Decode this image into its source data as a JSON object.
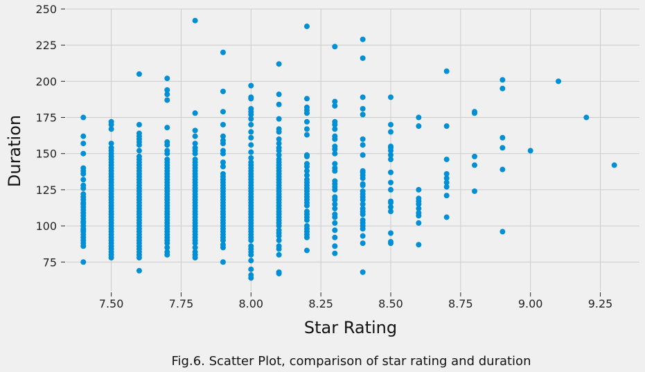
{
  "chart_data": {
    "type": "scatter",
    "xlabel": "Star Rating",
    "ylabel": "Duration",
    "caption": "Fig.6. Scatter Plot, comparison of star rating and duration",
    "xlim": [
      7.32,
      9.39
    ],
    "ylim": [
      55,
      250
    ],
    "xticks": [
      7.5,
      7.75,
      8.0,
      8.25,
      8.5,
      8.75,
      9.0,
      9.25
    ],
    "xtick_labels": [
      "7.50",
      "7.75",
      "8.00",
      "8.25",
      "8.50",
      "8.75",
      "9.00",
      "9.25"
    ],
    "yticks": [
      75,
      100,
      125,
      150,
      175,
      200,
      225,
      250
    ],
    "ytick_labels": [
      "75",
      "100",
      "125",
      "150",
      "175",
      "200",
      "225",
      "250"
    ],
    "grid": true,
    "marker_color": "#008fd5",
    "background_color": "#f0f0f0",
    "grid_color": "#cbcbcb",
    "groups": [
      {
        "x": 7.4,
        "y": [
          75,
          86,
          88,
          90,
          92,
          94,
          96,
          97,
          98,
          100,
          102,
          103,
          105,
          107,
          109,
          111,
          113,
          115,
          116,
          118,
          120,
          122,
          126,
          128,
          132,
          136,
          138,
          140,
          150,
          157,
          162,
          175
        ]
      },
      {
        "x": 7.5,
        "y": [
          78,
          80,
          82,
          84,
          86,
          88,
          90,
          92,
          94,
          96,
          98,
          100,
          102,
          104,
          106,
          108,
          110,
          112,
          114,
          116,
          118,
          120,
          122,
          124,
          126,
          128,
          130,
          132,
          134,
          136,
          138,
          140,
          142,
          144,
          146,
          148,
          150,
          152,
          154,
          157,
          167,
          170,
          172
        ]
      },
      {
        "x": 7.6,
        "y": [
          69,
          78,
          80,
          82,
          84,
          86,
          88,
          90,
          92,
          94,
          96,
          98,
          100,
          102,
          104,
          106,
          108,
          110,
          112,
          114,
          116,
          118,
          120,
          122,
          124,
          126,
          128,
          130,
          132,
          134,
          136,
          138,
          140,
          142,
          144,
          146,
          148,
          152,
          156,
          158,
          160,
          162,
          164,
          170,
          205
        ]
      },
      {
        "x": 7.7,
        "y": [
          80,
          82,
          85,
          88,
          90,
          92,
          94,
          96,
          98,
          100,
          102,
          104,
          106,
          108,
          110,
          112,
          114,
          116,
          118,
          120,
          122,
          124,
          126,
          128,
          130,
          132,
          134,
          136,
          138,
          140,
          142,
          144,
          146,
          150,
          152,
          156,
          158,
          168,
          187,
          191,
          194,
          202
        ]
      },
      {
        "x": 7.8,
        "y": [
          78,
          80,
          82,
          85,
          88,
          90,
          92,
          94,
          96,
          98,
          100,
          102,
          104,
          106,
          108,
          110,
          112,
          114,
          116,
          118,
          120,
          122,
          124,
          126,
          128,
          130,
          132,
          134,
          136,
          138,
          140,
          142,
          144,
          146,
          150,
          152,
          154,
          157,
          162,
          166,
          178,
          242
        ]
      },
      {
        "x": 7.9,
        "y": [
          75,
          85,
          87,
          90,
          92,
          94,
          96,
          98,
          100,
          102,
          104,
          106,
          108,
          110,
          112,
          114,
          116,
          118,
          120,
          122,
          124,
          126,
          128,
          130,
          132,
          134,
          136,
          141,
          144,
          150,
          152,
          157,
          159,
          162,
          170,
          179,
          193,
          220
        ]
      },
      {
        "x": 8.0,
        "y": [
          64,
          66,
          70,
          76,
          80,
          82,
          84,
          86,
          90,
          92,
          94,
          96,
          98,
          100,
          102,
          104,
          106,
          108,
          110,
          112,
          114,
          116,
          118,
          120,
          122,
          124,
          126,
          128,
          130,
          132,
          134,
          136,
          138,
          140,
          142,
          144,
          147,
          151,
          156,
          161,
          165,
          170,
          174,
          177,
          179,
          181,
          188,
          189,
          197
        ]
      },
      {
        "x": 8.1,
        "y": [
          67,
          68,
          80,
          84,
          86,
          90,
          93,
          95,
          97,
          100,
          102,
          104,
          106,
          108,
          110,
          112,
          114,
          116,
          118,
          120,
          122,
          124,
          126,
          128,
          130,
          132,
          134,
          136,
          138,
          140,
          142,
          144,
          146,
          149,
          152,
          154,
          157,
          160,
          165,
          167,
          174,
          184,
          191,
          212
        ]
      },
      {
        "x": 8.2,
        "y": [
          83,
          92,
          94,
          96,
          98,
          100,
          104,
          106,
          108,
          110,
          114,
          116,
          118,
          120,
          122,
          124,
          126,
          128,
          130,
          132,
          135,
          138,
          141,
          143,
          148,
          149,
          163,
          167,
          172,
          178,
          180,
          182,
          188,
          238
        ]
      },
      {
        "x": 8.3,
        "y": [
          81,
          86,
          92,
          97,
          102,
          106,
          108,
          112,
          115,
          118,
          120,
          125,
          127,
          129,
          131,
          138,
          140,
          143,
          150,
          153,
          155,
          160,
          162,
          167,
          170,
          172,
          183,
          186,
          224
        ]
      },
      {
        "x": 8.4,
        "y": [
          68,
          88,
          93,
          98,
          100,
          102,
          104,
          108,
          110,
          112,
          115,
          118,
          120,
          122,
          124,
          128,
          129,
          133,
          135,
          137,
          138,
          149,
          156,
          160,
          177,
          181,
          189,
          216,
          229
        ]
      },
      {
        "x": 8.5,
        "y": [
          88,
          89,
          95,
          110,
          113,
          116,
          117,
          125,
          130,
          137,
          146,
          149,
          152,
          154,
          155,
          165,
          170,
          189
        ]
      },
      {
        "x": 8.6,
        "y": [
          87,
          102,
          107,
          109,
          112,
          115,
          117,
          119,
          125,
          169,
          175
        ]
      },
      {
        "x": 8.7,
        "y": [
          106,
          121,
          127,
          130,
          133,
          136,
          146,
          169,
          207
        ]
      },
      {
        "x": 8.8,
        "y": [
          124,
          142,
          148,
          178,
          179
        ]
      },
      {
        "x": 8.9,
        "y": [
          96,
          139,
          154,
          161,
          195,
          201
        ]
      },
      {
        "x": 9.0,
        "y": [
          152
        ]
      },
      {
        "x": 9.1,
        "y": [
          200
        ]
      },
      {
        "x": 9.2,
        "y": [
          175
        ]
      },
      {
        "x": 9.3,
        "y": [
          142
        ]
      }
    ]
  }
}
